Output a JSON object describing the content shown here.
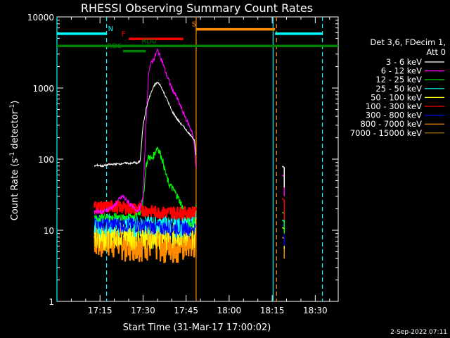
{
  "chart_data": {
    "type": "line",
    "title": "RHESSI Observing Summary Count Rates",
    "xlabel": "Start Time (31-Mar-17 17:00:02)",
    "ylabel": "Count Rate (s",
    "ylabel_sup1": "-1",
    "ylabel_mid": " detector",
    "ylabel_sup2": "-1",
    "ylabel_end": ")",
    "yscale": "log",
    "ylim": [
      1,
      10000
    ],
    "xlim_minutes": [
      0,
      98
    ],
    "y_ticks": [
      {
        "v": 1,
        "label": "1"
      },
      {
        "v": 10,
        "label": "10"
      },
      {
        "v": 100,
        "label": "100"
      },
      {
        "v": 1000,
        "label": "1000"
      },
      {
        "v": 10000,
        "label": "10000"
      }
    ],
    "x_ticks": [
      {
        "m": 15,
        "label": "17:15"
      },
      {
        "m": 30,
        "label": "17:30"
      },
      {
        "m": 45,
        "label": "17:45"
      },
      {
        "m": 60,
        "label": "18:00"
      },
      {
        "m": 75,
        "label": "18:15"
      },
      {
        "m": 90,
        "label": "18:30"
      }
    ],
    "legend_header": [
      "Det 3,6, FDecim 1,",
      "Att 0"
    ],
    "series": [
      {
        "name": "3 - 6 keV",
        "color": "#ffffff",
        "x": [
          13,
          14,
          16,
          18,
          20,
          22,
          24,
          26,
          27,
          28,
          29,
          30,
          31,
          32,
          33,
          34,
          35,
          36,
          37,
          38,
          39,
          40,
          42,
          44,
          46,
          47,
          48,
          48.5
        ],
        "y": [
          80,
          82,
          80,
          84,
          85,
          86,
          88,
          87,
          90,
          87,
          95,
          300,
          500,
          700,
          900,
          1100,
          1200,
          1100,
          900,
          750,
          600,
          480,
          360,
          290,
          230,
          210,
          180,
          100
        ]
      },
      {
        "name": "6 - 12 keV",
        "color": "#ff00ff",
        "x": [
          13,
          14,
          16,
          18,
          20,
          21,
          22,
          23,
          24,
          25,
          26,
          27,
          28,
          29,
          30,
          31,
          32,
          33,
          34,
          35,
          36,
          37,
          38,
          40,
          42,
          44,
          46,
          47,
          48,
          48.5
        ],
        "y": [
          18,
          19,
          18,
          20,
          22,
          25,
          28,
          30,
          27,
          25,
          22,
          20,
          19,
          21,
          30,
          300,
          1800,
          2300,
          2700,
          3400,
          2800,
          2200,
          1600,
          1000,
          700,
          450,
          300,
          250,
          150,
          60
        ]
      },
      {
        "name": "12 - 25 keV",
        "color": "#00ff00",
        "x": [
          13,
          15,
          17,
          19,
          21,
          23,
          25,
          27,
          28,
          29,
          30,
          31,
          32,
          33,
          34,
          35,
          36,
          37,
          38,
          39,
          40,
          41,
          42,
          43,
          44,
          45,
          46,
          47,
          48,
          48.5
        ],
        "y": [
          15,
          15,
          16,
          15,
          16,
          15,
          16,
          16,
          17,
          18,
          25,
          80,
          110,
          100,
          120,
          150,
          120,
          90,
          60,
          45,
          40,
          35,
          30,
          25,
          20,
          16,
          13,
          12,
          14,
          25
        ]
      },
      {
        "name": "25 - 50 keV",
        "color": "#00ffff",
        "x": [
          13,
          15,
          18,
          21,
          24,
          27,
          30,
          33,
          36,
          39,
          42,
          45,
          48,
          48.5
        ],
        "y": [
          13,
          12,
          13,
          12,
          13,
          12,
          13,
          12,
          13,
          12,
          12,
          12,
          13,
          20
        ]
      },
      {
        "name": "50 - 100 keV",
        "color": "#ffff00",
        "x": [
          13,
          16,
          20,
          24,
          28,
          32,
          36,
          40,
          44,
          48,
          48.5
        ],
        "y": [
          9,
          9,
          9.5,
          9,
          9,
          9.5,
          9,
          9,
          9.5,
          9,
          15
        ]
      },
      {
        "name": "100 - 300 keV",
        "color": "#ff0000",
        "x": [
          13,
          16,
          20,
          24,
          28,
          32,
          36,
          40,
          44,
          48,
          48.5
        ],
        "y": [
          22,
          21,
          22,
          21,
          20,
          19,
          18,
          18,
          18,
          18,
          25
        ]
      },
      {
        "name": "300 - 800 keV",
        "color": "#0000ff",
        "x": [
          13,
          16,
          20,
          24,
          28,
          32,
          36,
          40,
          44,
          48,
          48.5
        ],
        "y": [
          14,
          13,
          12.5,
          12,
          12,
          11.5,
          11,
          11,
          11,
          11,
          15
        ]
      },
      {
        "name": "800 - 7000 keV",
        "color": "#ff8c00",
        "x": [
          13,
          16,
          20,
          24,
          28,
          32,
          36,
          40,
          44,
          48,
          48.5
        ],
        "y": [
          8,
          7.5,
          7.5,
          7,
          7,
          7,
          6.5,
          6.5,
          6.5,
          7,
          12
        ]
      },
      {
        "name": "7000 - 15000 keV",
        "color": "#b8860b",
        "x": [],
        "y": []
      }
    ],
    "late_segment_color": "#ffffff",
    "flags": [
      {
        "label": "N",
        "color": "#00ffff",
        "start": 0,
        "end": 17.3,
        "y": 5800,
        "label_x": 17.3
      },
      {
        "label": "N",
        "color": "#00ffff",
        "start": 76,
        "end": 92.5,
        "y": 5800,
        "label_x": null
      },
      {
        "label": "S",
        "color": "#ff8c00",
        "start": 48.5,
        "end": 76,
        "y": 6700,
        "label_x": 46.5
      },
      {
        "label": "F",
        "color": "#ff0000",
        "start": 25,
        "end": 44,
        "y": 4900,
        "label_x": 22
      },
      {
        "label": "RD0",
        "color": "#008000",
        "start": 0,
        "end": 98,
        "y": 3900,
        "label_x": 29
      },
      {
        "label": "RD6",
        "color": "#008000",
        "start": 23,
        "end": 31,
        "y": 3300,
        "label_x": 17
      }
    ],
    "vlines": [
      {
        "m": 0,
        "color": "#00ffff",
        "dashed": false
      },
      {
        "m": 17.3,
        "color": "#00ffff",
        "dashed": true
      },
      {
        "m": 48.5,
        "color": "#ff8c00",
        "dashed": false
      },
      {
        "m": 75.3,
        "color": "#00ffff",
        "dashed": false
      },
      {
        "m": 76.5,
        "color": "#ff8c00",
        "dashed": true
      },
      {
        "m": 92.5,
        "color": "#00ffff",
        "dashed": true
      }
    ],
    "footer_date": "2-Sep-2022 07:11"
  }
}
